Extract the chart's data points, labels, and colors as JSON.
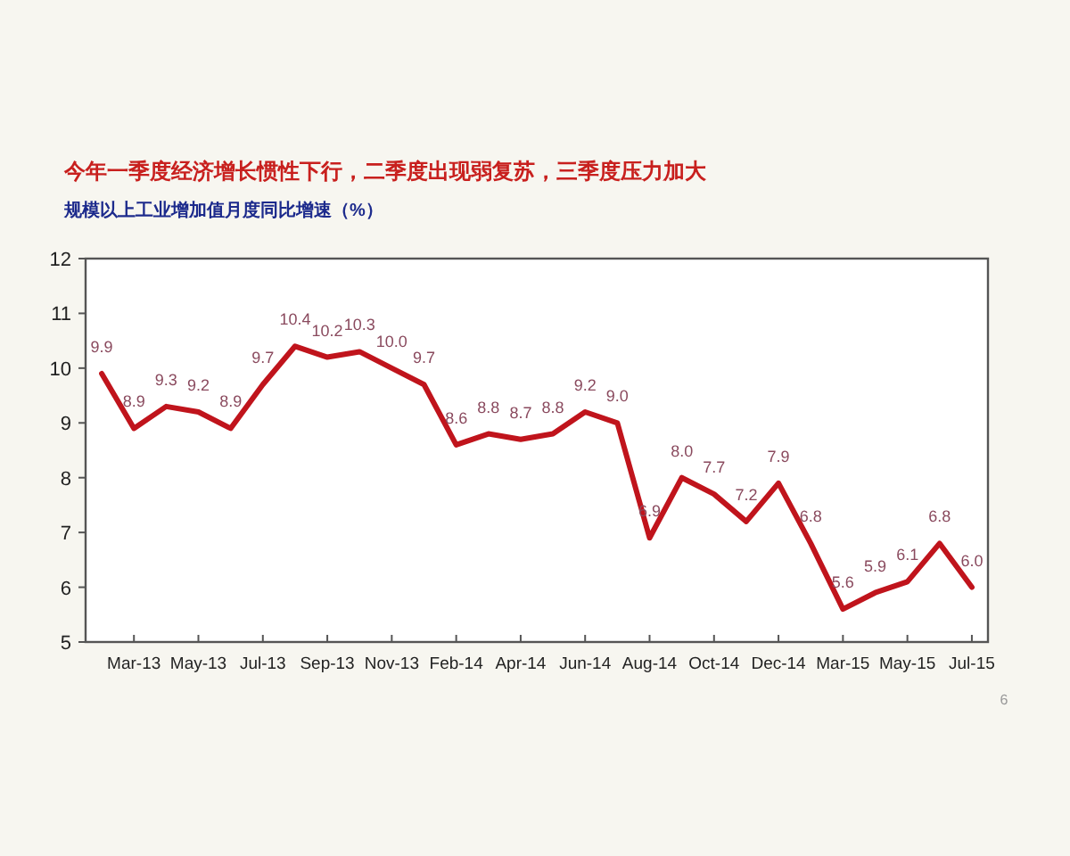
{
  "chart_data": {
    "type": "line",
    "title": "今年一季度经济增长惯性下行，二季度出现弱复苏，三季度压力加大",
    "subtitle": "规模以上工业增加值月度同比增速（%）",
    "categories": [
      null,
      "Mar-13",
      null,
      "May-13",
      null,
      "Jul-13",
      null,
      "Sep-13",
      null,
      "Nov-13",
      null,
      "Feb-14",
      null,
      "Apr-14",
      null,
      "Jun-14",
      null,
      "Aug-14",
      null,
      "Oct-14",
      null,
      "Dec-14",
      null,
      "Mar-15",
      null,
      "May-15",
      null,
      "Jul-15"
    ],
    "series": [
      {
        "color": "#c0141c",
        "values": [
          9.9,
          8.9,
          9.3,
          9.2,
          8.9,
          9.7,
          10.4,
          10.2,
          10.3,
          10.0,
          9.7,
          8.6,
          8.8,
          8.7,
          8.8,
          9.2,
          9.0,
          6.9,
          8.0,
          7.7,
          7.2,
          7.9,
          6.8,
          5.6,
          5.9,
          6.1,
          6.8,
          6.0
        ],
        "value_labels": [
          "9.9",
          "8.9",
          "9.3",
          "9.2",
          "8.9",
          "9.7",
          "10.4",
          "10.2",
          "10.3",
          "10.0",
          "9.7",
          "8.6",
          "8.8",
          "8.7",
          "8.8",
          "9.2",
          "9.0",
          "6.9",
          "8.0",
          "7.7",
          "7.2",
          "7.9",
          "6.8",
          "5.6",
          "5.9",
          "6.1",
          "6.8",
          "6.0"
        ]
      }
    ],
    "ylim": [
      5,
      12
    ],
    "yticks": [
      5,
      6,
      7,
      8,
      9,
      10,
      11,
      12
    ],
    "grid": false,
    "marker": "none",
    "line_style": "solid",
    "annotations": [
      "6"
    ]
  }
}
